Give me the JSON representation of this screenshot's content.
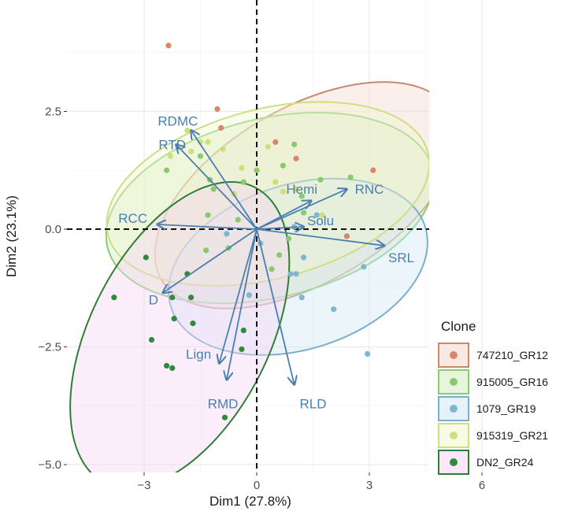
{
  "chart_data": {
    "type": "scatter",
    "subtype": "pca-biplot",
    "xlabel": "Dim1 (27.8%)",
    "ylabel": "Dim2 (23.1%)",
    "xlim": [
      -5.0,
      6.0
    ],
    "ylim": [
      -5.2,
      4.5
    ],
    "xticks": [
      -3,
      0,
      3,
      6
    ],
    "xtick_labels": [
      "−3",
      "0",
      "3",
      "6"
    ],
    "yticks": [
      -5.0,
      -2.5,
      0.0,
      2.5
    ],
    "ytick_labels": [
      "−5.0",
      "−2.5",
      "0.0",
      "2.5"
    ],
    "grid": true,
    "reference_lines": {
      "x": 0,
      "y": 0,
      "style": "dashed"
    },
    "legend": {
      "title": "Clone",
      "placement": "right"
    },
    "groups": [
      {
        "name": "747210_GR12",
        "point_color": "#d9866a",
        "ellipse_stroke": "#c8876f",
        "ellipse_fill": "#f3d8cc",
        "ellipse": {
          "cx": 1.3,
          "cy": 0.72,
          "rx": 4.45,
          "ry": 1.85,
          "angle_deg": -30.5
        },
        "points": [
          [
            -2.35,
            3.9
          ],
          [
            -1.05,
            2.55
          ],
          [
            -0.95,
            2.15
          ],
          [
            0.5,
            1.85
          ],
          [
            1.05,
            1.5
          ],
          [
            3.1,
            1.25
          ],
          [
            2.4,
            -0.15
          ]
        ]
      },
      {
        "name": "915005_GR16",
        "point_color": "#8bc96e",
        "ellipse_stroke": "#8fcb77",
        "ellipse_fill": "#d3ecc0",
        "ellipse": {
          "cx": 0.35,
          "cy": 0.45,
          "rx": 4.45,
          "ry": 1.9,
          "angle_deg": -13.5
        },
        "points": [
          [
            -2.4,
            1.25
          ],
          [
            -1.5,
            1.55
          ],
          [
            -1.25,
            1.05
          ],
          [
            -0.35,
            1.0
          ],
          [
            0.0,
            1.25
          ],
          [
            0.7,
            1.35
          ],
          [
            1.0,
            1.8
          ],
          [
            1.2,
            0.7
          ],
          [
            1.7,
            1.05
          ],
          [
            1.25,
            0.35
          ],
          [
            0.85,
            -0.2
          ],
          [
            0.6,
            -0.55
          ],
          [
            0.4,
            -0.85
          ],
          [
            -0.75,
            -0.4
          ],
          [
            -1.35,
            -0.45
          ],
          [
            -1.3,
            0.3
          ],
          [
            -0.5,
            0.2
          ],
          [
            2.5,
            1.1
          ],
          [
            -1.15,
            0.85
          ]
        ]
      },
      {
        "name": "1079_GR19",
        "point_color": "#7fb6d1",
        "ellipse_stroke": "#7ab0cb",
        "ellipse_fill": "#cfe7f4",
        "ellipse": {
          "cx": 1.1,
          "cy": -0.8,
          "rx": 3.55,
          "ry": 1.75,
          "angle_deg": -17.5
        },
        "points": [
          [
            1.6,
            0.3
          ],
          [
            0.9,
            -0.95
          ],
          [
            1.05,
            -0.95
          ],
          [
            1.2,
            -1.45
          ],
          [
            1.25,
            -0.6
          ],
          [
            2.05,
            -1.7
          ],
          [
            2.85,
            -0.8
          ],
          [
            2.95,
            -2.65
          ],
          [
            -0.2,
            -1.4
          ],
          [
            -0.8,
            -0.1
          ],
          [
            1.0,
            0.05
          ],
          [
            0.1,
            -0.3
          ]
        ]
      },
      {
        "name": "915319_GR21",
        "point_color": "#cddf78",
        "ellipse_stroke": "#cfdd83",
        "ellipse_fill": "#f1f6d0",
        "ellipse": {
          "cx": 0.3,
          "cy": 0.75,
          "rx": 4.4,
          "ry": 1.8,
          "angle_deg": -14.5
        },
        "points": [
          [
            -1.85,
            2.1
          ],
          [
            -1.3,
            1.85
          ],
          [
            -1.5,
            1.85
          ],
          [
            -0.9,
            1.7
          ],
          [
            -0.4,
            1.3
          ],
          [
            0.3,
            1.75
          ],
          [
            1.05,
            0.85
          ],
          [
            -2.3,
            1.55
          ],
          [
            -1.75,
            1.65
          ],
          [
            -0.6,
            0.75
          ],
          [
            0.5,
            1.0
          ],
          [
            1.75,
            0.3
          ],
          [
            0.7,
            0.8
          ]
        ]
      },
      {
        "name": "DN2_GR24",
        "point_color": "#2f8a3c",
        "ellipse_stroke": "#2e7f36",
        "ellipse_fill": "#f9d4f5",
        "ellipse": {
          "cx": -2.05,
          "cy": -2.25,
          "rx": 2.38,
          "ry": 3.52,
          "angle_deg": 27.0
        },
        "points": [
          [
            -3.8,
            -1.45
          ],
          [
            -2.95,
            -0.6
          ],
          [
            -1.85,
            -0.95
          ],
          [
            -2.25,
            -1.45
          ],
          [
            -1.75,
            -1.45
          ],
          [
            -2.2,
            -1.9
          ],
          [
            -1.7,
            -2.0
          ],
          [
            -2.8,
            -2.35
          ],
          [
            -2.4,
            -2.9
          ],
          [
            -2.25,
            -2.95
          ],
          [
            -0.85,
            -4.0
          ],
          [
            -0.35,
            -2.15
          ],
          [
            -0.4,
            -2.55
          ]
        ]
      }
    ],
    "variables": [
      {
        "name": "RDMC",
        "arrow": [
          -1.75,
          2.1
        ],
        "label_at": [
          -2.1,
          2.3
        ]
      },
      {
        "name": "RTD",
        "arrow": [
          -2.15,
          1.8
        ],
        "label_at": [
          -2.25,
          1.8
        ]
      },
      {
        "name": "Hemi",
        "arrow": [
          1.45,
          0.6
        ],
        "label_at": [
          1.2,
          0.85
        ]
      },
      {
        "name": "RNC",
        "arrow": [
          2.4,
          0.85
        ],
        "label_at": [
          3.0,
          0.85
        ]
      },
      {
        "name": "RCC",
        "arrow": [
          -2.65,
          0.1
        ],
        "label_at": [
          -3.3,
          0.23
        ]
      },
      {
        "name": "Solu",
        "arrow": [
          1.25,
          0.05
        ],
        "label_at": [
          1.7,
          0.18
        ]
      },
      {
        "name": "SRL",
        "arrow": [
          3.4,
          -0.35
        ],
        "label_at": [
          3.85,
          -0.6
        ]
      },
      {
        "name": "D",
        "arrow": [
          -2.5,
          -1.35
        ],
        "label_at": [
          -2.75,
          -1.5
        ]
      },
      {
        "name": "Lign",
        "arrow": [
          -1.0,
          -2.85
        ],
        "label_at": [
          -1.55,
          -2.65
        ]
      },
      {
        "name": "RMD",
        "arrow": [
          -0.8,
          -3.2
        ],
        "label_at": [
          -0.9,
          -3.7
        ]
      },
      {
        "name": "RLD",
        "arrow": [
          1.0,
          -3.3
        ],
        "label_at": [
          1.5,
          -3.7
        ]
      }
    ],
    "arrow_color": "#4a7fae"
  }
}
